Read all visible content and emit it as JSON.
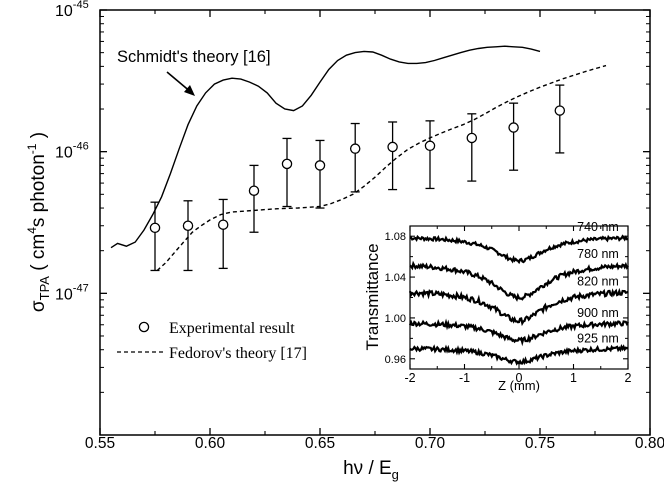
{
  "chart_data": [
    {
      "type": "line",
      "title": "",
      "xlabel": {
        "main": "hν / E",
        "sub": "g"
      },
      "ylabel": {
        "prefix": "σ",
        "sub": "TPA",
        "unit_open": " ( cm",
        "sup1": "4",
        "unit_mid": "s photon",
        "sup2": "-1",
        "unit_close": " )"
      },
      "xlim": [
        0.55,
        0.8
      ],
      "ylim": [
        1e-48,
        1e-45
      ],
      "yscale": "log",
      "x_ticks": [
        "0.55",
        "0.60",
        "0.65",
        "0.70",
        "0.75",
        "0.80"
      ],
      "y_ticks": [
        {
          "base": "10",
          "exp": "-47",
          "value": 1e-47
        },
        {
          "base": "10",
          "exp": "-46",
          "value": 1e-46
        },
        {
          "base": "10",
          "exp": "-45",
          "value": 1e-45
        }
      ],
      "series": [
        {
          "name": "Schmidt's theory [16]",
          "style": "solid",
          "x": [
            0.555,
            0.558,
            0.562,
            0.566,
            0.57,
            0.574,
            0.578,
            0.582,
            0.586,
            0.59,
            0.594,
            0.598,
            0.602,
            0.606,
            0.61,
            0.614,
            0.618,
            0.622,
            0.626,
            0.63,
            0.634,
            0.638,
            0.642,
            0.646,
            0.65,
            0.654,
            0.658,
            0.662,
            0.666,
            0.67,
            0.674,
            0.678,
            0.682,
            0.686,
            0.69,
            0.694,
            0.698,
            0.702,
            0.706,
            0.71,
            0.714,
            0.718,
            0.722,
            0.726,
            0.73,
            0.734,
            0.738,
            0.742,
            0.746,
            0.75
          ],
          "y": [
            2.1e-47,
            2.25e-47,
            2.15e-47,
            2.3e-47,
            2.8e-47,
            3.6e-47,
            4.8e-47,
            7e-47,
            1.05e-46,
            1.55e-46,
            2.1e-46,
            2.6e-46,
            3e-46,
            3.2e-46,
            3.3e-46,
            3.25e-46,
            3.1e-46,
            2.9e-46,
            2.6e-46,
            2.2e-46,
            2e-46,
            1.95e-46,
            2.1e-46,
            2.5e-46,
            3.1e-46,
            3.8e-46,
            4.4e-46,
            4.8e-46,
            5e-46,
            5.1e-46,
            5.05e-46,
            4.8e-46,
            4.5e-46,
            4.3e-46,
            4.2e-46,
            4.2e-46,
            4.25e-46,
            4.4e-46,
            4.6e-46,
            4.8e-46,
            5e-46,
            5.2e-46,
            5.35e-46,
            5.45e-46,
            5.5e-46,
            5.55e-46,
            5.5e-46,
            5.45e-46,
            5.3e-46,
            5.1e-46
          ]
        },
        {
          "name": "Fedorov's theory [17]",
          "style": "dashed",
          "x": [
            0.576,
            0.58,
            0.584,
            0.588,
            0.592,
            0.596,
            0.6,
            0.605,
            0.61,
            0.62,
            0.63,
            0.64,
            0.65,
            0.655,
            0.66,
            0.665,
            0.67,
            0.675,
            0.68,
            0.685,
            0.69,
            0.695,
            0.7,
            0.705,
            0.71,
            0.715,
            0.72,
            0.725,
            0.73,
            0.735,
            0.74,
            0.745,
            0.75,
            0.755,
            0.76,
            0.765,
            0.77,
            0.775,
            0.78
          ],
          "y": [
            1.45e-47,
            1.65e-47,
            1.95e-47,
            2.3e-47,
            2.7e-47,
            3e-47,
            3.3e-47,
            3.6e-47,
            3.75e-47,
            3.85e-47,
            3.95e-47,
            4e-47,
            4.1e-47,
            4.3e-47,
            4.6e-47,
            5e-47,
            5.7e-47,
            6.6e-47,
            7.8e-47,
            9.1e-47,
            1.04e-46,
            1.15e-46,
            1.25e-46,
            1.35e-46,
            1.45e-46,
            1.55e-46,
            1.68e-46,
            1.85e-46,
            2.05e-46,
            2.25e-46,
            2.45e-46,
            2.65e-46,
            2.85e-46,
            3.05e-46,
            3.25e-46,
            3.45e-46,
            3.65e-46,
            3.85e-46,
            4.05e-46
          ]
        },
        {
          "name": "Experimental result",
          "style": "markers",
          "points": [
            {
              "x": 0.575,
              "y": 2.9e-47,
              "low": 1.45e-47,
              "high": 4.4e-47
            },
            {
              "x": 0.59,
              "y": 3e-47,
              "low": 1.45e-47,
              "high": 4.5e-47
            },
            {
              "x": 0.606,
              "y": 3.05e-47,
              "low": 1.5e-47,
              "high": 4.6e-47
            },
            {
              "x": 0.62,
              "y": 5.3e-47,
              "low": 2.7e-47,
              "high": 8e-47
            },
            {
              "x": 0.635,
              "y": 8.2e-47,
              "low": 4.1e-47,
              "high": 1.24e-46
            },
            {
              "x": 0.65,
              "y": 8e-47,
              "low": 4e-47,
              "high": 1.2e-46
            },
            {
              "x": 0.666,
              "y": 1.05e-46,
              "low": 5.2e-47,
              "high": 1.58e-46
            },
            {
              "x": 0.683,
              "y": 1.08e-46,
              "low": 5.4e-47,
              "high": 1.62e-46
            },
            {
              "x": 0.7,
              "y": 1.1e-46,
              "low": 5.5e-47,
              "high": 1.65e-46
            },
            {
              "x": 0.719,
              "y": 1.25e-46,
              "low": 6.2e-47,
              "high": 1.85e-46
            },
            {
              "x": 0.738,
              "y": 1.48e-46,
              "low": 7.4e-47,
              "high": 2.2e-46
            },
            {
              "x": 0.759,
              "y": 1.95e-46,
              "low": 9.8e-47,
              "high": 2.95e-46
            }
          ]
        }
      ],
      "annotation": {
        "text": "Schmidt's theory [16]",
        "arrow": "from label toward the solid curve"
      },
      "legend": {
        "placement": "lower-left",
        "entries": [
          {
            "label": "Experimental result",
            "symbol": "open-circle"
          },
          {
            "label": "Fedorov's theory [17]",
            "symbol": "dashed-line"
          }
        ]
      },
      "grid": false
    },
    {
      "type": "line",
      "role": "inset",
      "placement": "lower-right",
      "xlabel": "Z (mm)",
      "ylabel": "Transmittance",
      "xlim": [
        -2,
        2
      ],
      "ylim": [
        0.95,
        1.09
      ],
      "x_ticks": [
        "-2",
        "-1",
        "0",
        "1",
        "2"
      ],
      "y_ticks": [
        "0.96",
        "1.00",
        "1.04",
        "1.08"
      ],
      "series": [
        {
          "label": "740 nm",
          "baseline": 1.08,
          "depth": 0.024,
          "width": 0.55,
          "noise": 0.0018
        },
        {
          "label": "780 nm",
          "baseline": 1.054,
          "depth": 0.034,
          "width": 0.6,
          "noise": 0.0022
        },
        {
          "label": "820 nm",
          "baseline": 1.027,
          "depth": 0.03,
          "width": 0.55,
          "noise": 0.0025
        },
        {
          "label": "900 nm",
          "baseline": 0.996,
          "depth": 0.018,
          "width": 0.55,
          "noise": 0.0022
        },
        {
          "label": "925 nm",
          "baseline": 0.971,
          "depth": 0.014,
          "width": 0.55,
          "noise": 0.002
        }
      ],
      "grid": false
    }
  ]
}
